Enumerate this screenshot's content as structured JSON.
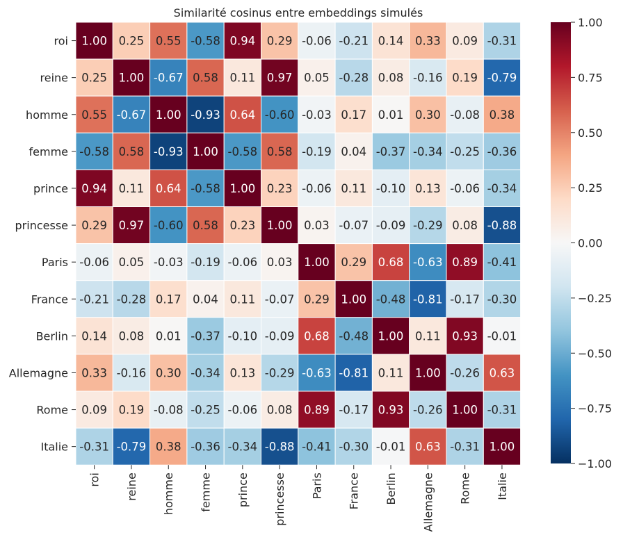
{
  "chart_data": {
    "type": "heatmap",
    "title": "Similarité cosinus entre embeddings simulés",
    "xlabel": "",
    "ylabel": "",
    "row_labels": [
      "roi",
      "reine",
      "homme",
      "femme",
      "prince",
      "princesse",
      "Paris",
      "France",
      "Berlin",
      "Allemagne",
      "Rome",
      "Italie"
    ],
    "col_labels": [
      "roi",
      "reine",
      "homme",
      "femme",
      "prince",
      "princesse",
      "Paris",
      "France",
      "Berlin",
      "Allemagne",
      "Rome",
      "Italie"
    ],
    "values": [
      [
        1.0,
        0.25,
        0.55,
        -0.58,
        0.94,
        0.29,
        -0.06,
        -0.21,
        0.14,
        0.33,
        0.09,
        -0.31
      ],
      [
        0.25,
        1.0,
        -0.67,
        0.58,
        0.11,
        0.97,
        0.05,
        -0.28,
        0.08,
        -0.16,
        0.19,
        -0.79
      ],
      [
        0.55,
        -0.67,
        1.0,
        -0.93,
        0.64,
        -0.6,
        -0.03,
        0.17,
        0.01,
        0.3,
        -0.08,
        0.38
      ],
      [
        -0.58,
        0.58,
        -0.93,
        1.0,
        -0.58,
        0.58,
        -0.19,
        0.04,
        -0.37,
        -0.34,
        -0.25,
        -0.36
      ],
      [
        0.94,
        0.11,
        0.64,
        -0.58,
        1.0,
        0.23,
        -0.06,
        0.11,
        -0.1,
        0.13,
        -0.06,
        -0.34
      ],
      [
        0.29,
        0.97,
        -0.6,
        0.58,
        0.23,
        1.0,
        0.03,
        -0.07,
        -0.09,
        -0.29,
        0.08,
        -0.88
      ],
      [
        -0.06,
        0.05,
        -0.03,
        -0.19,
        -0.06,
        0.03,
        1.0,
        0.29,
        0.68,
        -0.63,
        0.89,
        -0.41
      ],
      [
        -0.21,
        -0.28,
        0.17,
        0.04,
        0.11,
        -0.07,
        0.29,
        1.0,
        -0.48,
        -0.81,
        -0.17,
        -0.3
      ],
      [
        0.14,
        0.08,
        0.01,
        -0.37,
        -0.1,
        -0.09,
        0.68,
        -0.48,
        1.0,
        0.11,
        0.93,
        -0.01
      ],
      [
        0.33,
        -0.16,
        0.3,
        -0.34,
        0.13,
        -0.29,
        -0.63,
        -0.81,
        0.11,
        1.0,
        -0.26,
        0.63
      ],
      [
        0.09,
        0.19,
        -0.08,
        -0.25,
        -0.06,
        0.08,
        0.89,
        -0.17,
        0.93,
        -0.26,
        1.0,
        -0.31
      ],
      [
        -0.31,
        -0.79,
        0.38,
        -0.36,
        -0.34,
        -0.88,
        -0.41,
        -0.3,
        -0.01,
        0.63,
        -0.31,
        1.0
      ]
    ],
    "value_range": [
      -1.0,
      1.0
    ],
    "colormap": "RdBu_r",
    "colorbar_ticks": [
      "1.00",
      "0.75",
      "0.50",
      "0.25",
      "0.00",
      "−0.25",
      "−0.50",
      "−0.75",
      "−1.00"
    ],
    "colorbar_tick_values": [
      1.0,
      0.75,
      0.5,
      0.25,
      0.0,
      -0.25,
      -0.5,
      -0.75,
      -1.0
    ],
    "annotate": true,
    "number_format": "0.00"
  }
}
